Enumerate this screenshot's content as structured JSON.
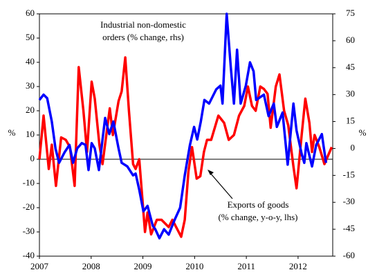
{
  "chart_data": {
    "type": "line",
    "annotations": [
      "Industrial non-domestic",
      "orders (% change, rhs)",
      "Exports of goods",
      "(% change, y-o-y, lhs)"
    ],
    "ylabel": "%",
    "y2label": "%",
    "xlim": [
      2007,
      2012.67
    ],
    "xticks": [
      2007,
      2008,
      2009,
      2010,
      2011,
      2012
    ],
    "ylim": [
      -40,
      60
    ],
    "yticks": [
      -40,
      -30,
      -20,
      -10,
      0,
      10,
      20,
      30,
      40,
      50,
      60
    ],
    "y2lim": [
      -60,
      75
    ],
    "y2ticks": [
      -60,
      -45,
      -30,
      -15,
      0,
      15,
      30,
      45,
      60,
      75
    ],
    "series": [
      {
        "name": "Exports of goods",
        "color": "#ff0000",
        "axis": "y",
        "x": [
          2007.0,
          2007.08,
          2007.18,
          2007.24,
          2007.32,
          2007.42,
          2007.51,
          2007.59,
          2007.68,
          2007.76,
          2007.85,
          2007.92,
          2008.01,
          2008.07,
          2008.16,
          2008.22,
          2008.36,
          2008.42,
          2008.53,
          2008.59,
          2008.66,
          2008.73,
          2008.81,
          2008.86,
          2008.93,
          2009.04,
          2009.09,
          2009.16,
          2009.27,
          2009.36,
          2009.5,
          2009.57,
          2009.74,
          2009.81,
          2009.88,
          2009.95,
          2010.04,
          2010.11,
          2010.18,
          2010.24,
          2010.32,
          2010.46,
          2010.57,
          2010.66,
          2010.76,
          2010.86,
          2010.96,
          2011.03,
          2011.11,
          2011.18,
          2011.27,
          2011.34,
          2011.41,
          2011.47,
          2011.57,
          2011.64,
          2011.73,
          2011.81,
          2011.91,
          2011.97,
          2012.07,
          2012.14,
          2012.22,
          2012.27,
          2012.32,
          2012.41,
          2012.51,
          2012.65
        ],
        "values": [
          0,
          18,
          -4,
          6,
          -11,
          9,
          8,
          5,
          -11,
          38,
          20,
          3,
          32,
          25,
          6,
          -2,
          21,
          10,
          24,
          28,
          42,
          20,
          -2,
          -4,
          0,
          -30,
          -22,
          -31,
          -25,
          -25,
          -28,
          -25,
          -32,
          -25,
          -5,
          5,
          -8,
          -7,
          3,
          8,
          8,
          18,
          15,
          8,
          10,
          18,
          22,
          30,
          22,
          20,
          30,
          29,
          27,
          13,
          30,
          35,
          20,
          14,
          -3,
          -12,
          10,
          25,
          15,
          3,
          10,
          5,
          -2,
          5
        ]
      },
      {
        "name": "Industrial non-domestic orders",
        "color": "#0000ff",
        "axis": "y2",
        "x": [
          2007.0,
          2007.08,
          2007.15,
          2007.24,
          2007.31,
          2007.38,
          2007.49,
          2007.58,
          2007.65,
          2007.73,
          2007.82,
          2007.89,
          2007.95,
          2008.01,
          2008.07,
          2008.15,
          2008.22,
          2008.27,
          2008.35,
          2008.43,
          2008.53,
          2008.59,
          2008.7,
          2008.81,
          2008.86,
          2008.93,
          2009.01,
          2009.09,
          2009.19,
          2009.24,
          2009.32,
          2009.41,
          2009.5,
          2009.61,
          2009.72,
          2009.81,
          2009.91,
          2009.99,
          2010.05,
          2010.12,
          2010.19,
          2010.28,
          2010.42,
          2010.5,
          2010.54,
          2010.62,
          2010.7,
          2010.76,
          2010.82,
          2010.89,
          2010.99,
          2011.07,
          2011.14,
          2011.19,
          2011.34,
          2011.43,
          2011.53,
          2011.59,
          2011.7,
          2011.8,
          2011.91,
          2011.97,
          2012.07,
          2012.12,
          2012.16,
          2012.27,
          2012.35,
          2012.46,
          2012.54
        ],
        "values": [
          27,
          30,
          28,
          15,
          0,
          -8,
          -2,
          2,
          -8,
          0,
          3,
          2,
          -12,
          3,
          0,
          -12,
          5,
          17,
          8,
          15,
          0,
          -8,
          -10,
          -15,
          -14,
          -23,
          -35,
          -32,
          -43,
          -45,
          -50,
          -45,
          -48,
          -40,
          -33,
          -15,
          2,
          12,
          5,
          15,
          27,
          25,
          33,
          35,
          25,
          75,
          45,
          25,
          55,
          25,
          35,
          48,
          43,
          27,
          30,
          18,
          25,
          12,
          20,
          -9,
          25,
          10,
          -3,
          -8,
          3,
          -10,
          2,
          8,
          -8
        ]
      }
    ]
  }
}
